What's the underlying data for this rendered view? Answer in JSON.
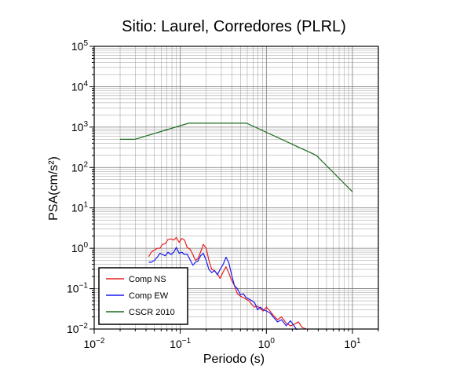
{
  "chart_data": {
    "type": "line",
    "title": "Sitio: Laurel, Corredores (PLRL)",
    "xlabel": "Periodo (s)",
    "ylabel": "PSA(cm/s²)",
    "xscale": "log",
    "yscale": "log",
    "xlim": [
      0.01,
      20
    ],
    "ylim": [
      0.01,
      100000
    ],
    "x_ticks": [
      {
        "base": "10",
        "exp": "−2"
      },
      {
        "base": "10",
        "exp": "−1"
      },
      {
        "base": "10",
        "exp": "0"
      },
      {
        "base": "10",
        "exp": "1"
      }
    ],
    "y_ticks": [
      {
        "base": "10",
        "exp": "−2"
      },
      {
        "base": "10",
        "exp": "−1"
      },
      {
        "base": "10",
        "exp": "0"
      },
      {
        "base": "10",
        "exp": "1"
      },
      {
        "base": "10",
        "exp": "2"
      },
      {
        "base": "10",
        "exp": "3"
      },
      {
        "base": "10",
        "exp": "4"
      },
      {
        "base": "10",
        "exp": "5"
      }
    ],
    "grid": true,
    "legend_position": "bottom-left",
    "series": [
      {
        "name": "Comp NS",
        "color": "#e8201e",
        "x": [
          0.043,
          0.046,
          0.05,
          0.054,
          0.058,
          0.062,
          0.067,
          0.072,
          0.078,
          0.084,
          0.09,
          0.097,
          0.104,
          0.112,
          0.12,
          0.13,
          0.14,
          0.15,
          0.16,
          0.172,
          0.185,
          0.2,
          0.215,
          0.232,
          0.25,
          0.27,
          0.29,
          0.315,
          0.34,
          0.365,
          0.395,
          0.425,
          0.46,
          0.5,
          0.54,
          0.58,
          0.63,
          0.68,
          0.73,
          0.79,
          0.85,
          0.92,
          1.0,
          1.1,
          1.2,
          1.35,
          1.5,
          1.7,
          1.9,
          2.1,
          2.35,
          2.6,
          2.9
        ],
        "y": [
          0.62,
          0.8,
          0.9,
          1.0,
          1.0,
          1.25,
          1.3,
          1.65,
          1.7,
          1.6,
          1.85,
          1.4,
          1.75,
          1.6,
          1.05,
          0.95,
          0.7,
          0.5,
          0.55,
          0.8,
          1.25,
          1.0,
          0.5,
          0.3,
          0.28,
          0.23,
          0.18,
          0.26,
          0.35,
          0.25,
          0.16,
          0.12,
          0.075,
          0.065,
          0.06,
          0.055,
          0.05,
          0.04,
          0.035,
          0.037,
          0.032,
          0.028,
          0.035,
          0.028,
          0.022,
          0.017,
          0.02,
          0.014,
          0.012,
          0.013,
          0.015,
          0.011,
          0.01
        ]
      },
      {
        "name": "Comp EW",
        "color": "#1a1aee",
        "x": [
          0.043,
          0.046,
          0.05,
          0.054,
          0.058,
          0.062,
          0.067,
          0.072,
          0.078,
          0.084,
          0.09,
          0.097,
          0.104,
          0.112,
          0.12,
          0.13,
          0.14,
          0.15,
          0.16,
          0.172,
          0.185,
          0.2,
          0.215,
          0.232,
          0.25,
          0.27,
          0.29,
          0.315,
          0.34,
          0.365,
          0.395,
          0.425,
          0.46,
          0.5,
          0.54,
          0.58,
          0.63,
          0.68,
          0.73,
          0.79,
          0.85,
          0.92,
          1.0,
          1.1,
          1.2,
          1.35,
          1.5,
          1.7,
          1.9,
          2.1,
          2.3
        ],
        "y": [
          0.45,
          0.45,
          0.5,
          0.6,
          0.75,
          0.7,
          0.65,
          0.8,
          0.7,
          0.8,
          1.05,
          0.75,
          0.8,
          0.7,
          0.72,
          0.52,
          0.38,
          0.45,
          0.48,
          0.65,
          0.75,
          0.5,
          0.3,
          0.25,
          0.28,
          0.22,
          0.3,
          0.4,
          0.6,
          0.45,
          0.22,
          0.12,
          0.1,
          0.07,
          0.075,
          0.06,
          0.055,
          0.05,
          0.045,
          0.03,
          0.035,
          0.03,
          0.028,
          0.025,
          0.02,
          0.015,
          0.017,
          0.012,
          0.016,
          0.012,
          0.009
        ]
      },
      {
        "name": "CSCR 2010",
        "color": "#1c6b1c",
        "x": [
          0.02,
          0.03,
          0.125,
          0.59,
          3.8,
          10
        ],
        "y": [
          500,
          500,
          1250,
          1250,
          200,
          25
        ]
      }
    ]
  }
}
